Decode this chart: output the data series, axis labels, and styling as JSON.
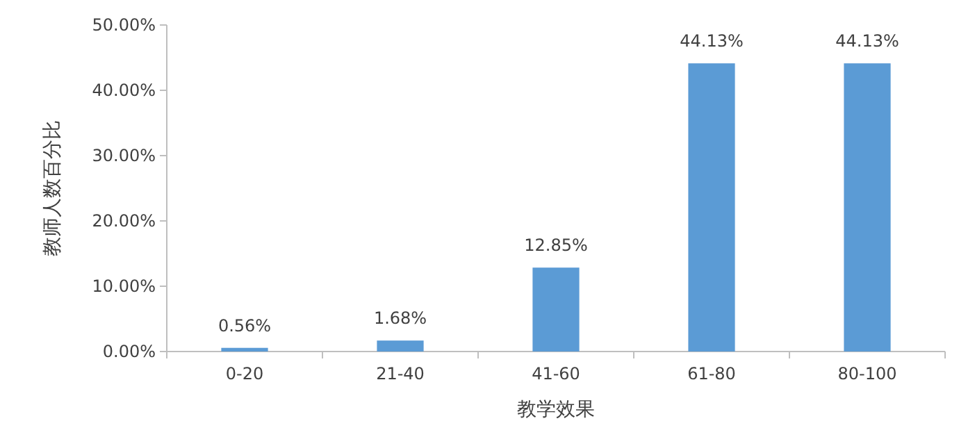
{
  "chart_data": {
    "type": "bar",
    "xlabel": "教学效果",
    "ylabel": "教师人数百分比",
    "categories": [
      "0-20",
      "21-40",
      "41-60",
      "61-80",
      "80-100"
    ],
    "values": [
      0.56,
      1.68,
      12.85,
      44.13,
      44.13
    ],
    "value_labels": [
      "0.56%",
      "1.68%",
      "12.85%",
      "44.13%",
      "44.13%"
    ],
    "color": "#5b9bd5",
    "ylim": [
      0,
      50
    ],
    "yticks": [
      {
        "value": 0,
        "label": "0.00%"
      },
      {
        "value": 10,
        "label": "10.00%"
      },
      {
        "value": 20,
        "label": "20.00%"
      },
      {
        "value": 30,
        "label": "30.00%"
      },
      {
        "value": 40,
        "label": "40.00%"
      },
      {
        "value": 50,
        "label": "50.00%"
      }
    ],
    "grid": false
  }
}
